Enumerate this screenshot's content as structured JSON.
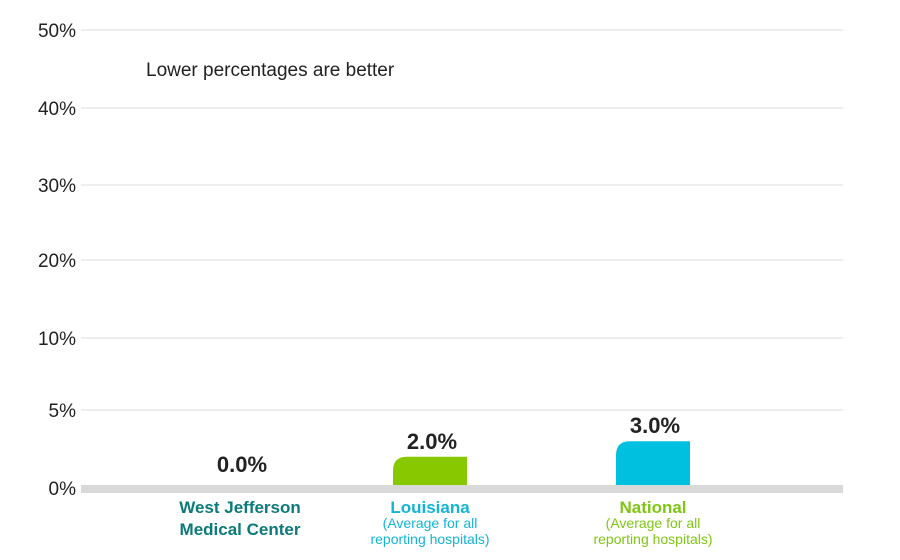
{
  "colors": {
    "hospital": "#0c7a7a",
    "state": "#88c800",
    "state_text": "#14b4d6",
    "national": "#00c0e0",
    "national_text": "#7fc614",
    "baseline": "#d9d9d9",
    "grid": "#dddddd"
  },
  "chart_data": {
    "type": "bar",
    "note": "Lower percentages are better",
    "y_ticks": [
      {
        "value": 0,
        "label": "0%"
      },
      {
        "value": 5,
        "label": "5%"
      },
      {
        "value": 10,
        "label": "10%"
      },
      {
        "value": 20,
        "label": "20%"
      },
      {
        "value": 30,
        "label": "30%"
      },
      {
        "value": 40,
        "label": "40%"
      },
      {
        "value": 50,
        "label": "50%"
      }
    ],
    "ylim": [
      0,
      50
    ],
    "grid": true,
    "categories": [
      {
        "name_lines": [
          "West Jefferson",
          "Medical Center"
        ],
        "sub_lines": [],
        "value": 0.0,
        "value_label": "0.0%",
        "bar_color": "#0c7a7a",
        "text_color": "#0c7a7a"
      },
      {
        "name_lines": [
          "Louisiana"
        ],
        "sub_lines": [
          "(Average for all",
          "reporting hospitals)"
        ],
        "value": 2.0,
        "value_label": "2.0%",
        "bar_color": "#88c800",
        "text_color": "#14b4d6"
      },
      {
        "name_lines": [
          "National"
        ],
        "sub_lines": [
          "(Average for all",
          "reporting hospitals)"
        ],
        "value": 3.0,
        "value_label": "3.0%",
        "bar_color": "#00c0e0",
        "text_color": "#7fc614"
      }
    ]
  }
}
